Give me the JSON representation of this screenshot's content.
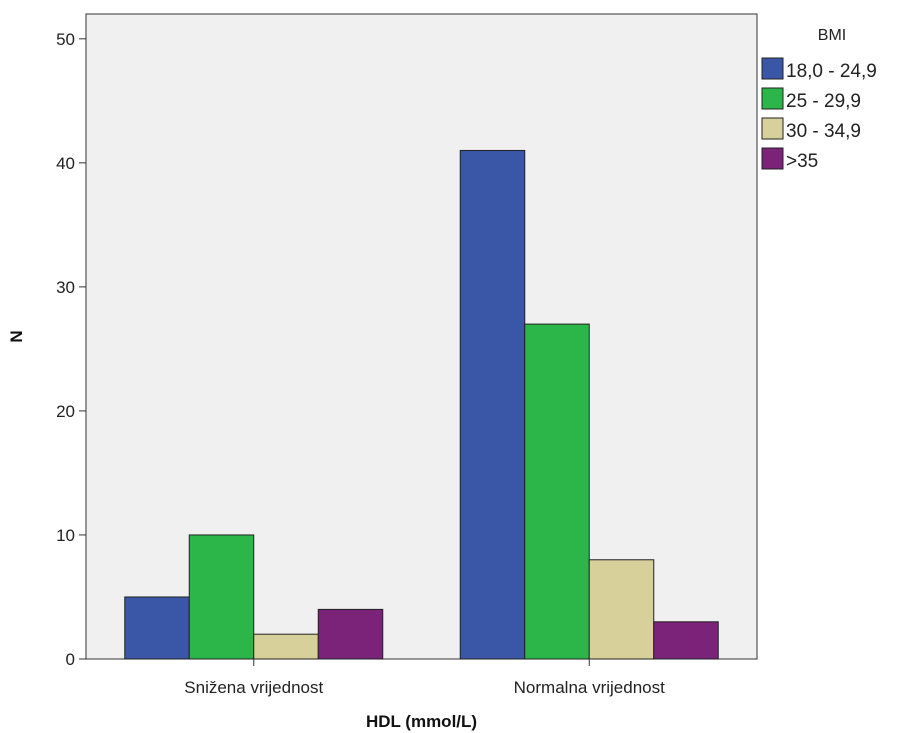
{
  "chart_data": {
    "type": "bar",
    "xlabel": "HDL (mmol/L)",
    "ylabel": "N",
    "ylim": [
      0,
      52
    ],
    "yticks": [
      0,
      10,
      20,
      30,
      40,
      50
    ],
    "grid": false,
    "legend_position": "top-right outside",
    "legend_title": "BMI",
    "categories": [
      "Snižena vrijednost",
      "Normalna vrijednost"
    ],
    "series": [
      {
        "name": "18,0 - 24,9",
        "color": "#3a57a7",
        "values": [
          5,
          41
        ]
      },
      {
        "name": "25 - 29,9",
        "color": "#2cb64a",
        "values": [
          10,
          27
        ]
      },
      {
        "name": "30 - 34,9",
        "color": "#d7d09a",
        "values": [
          2,
          8
        ]
      },
      {
        "name": ">35",
        "color": "#7b2279",
        "values": [
          4,
          3
        ]
      }
    ],
    "plot_background": "#f0f0f0"
  }
}
